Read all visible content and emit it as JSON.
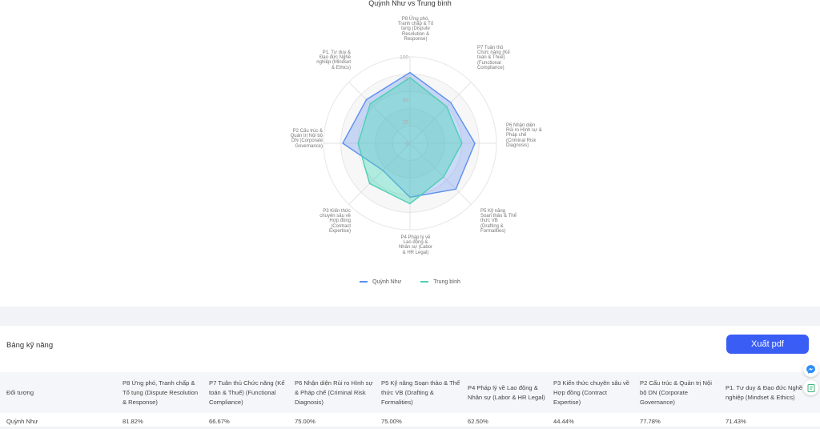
{
  "chart": {
    "title": "Quỳnh Như vs Trung bình",
    "axes": [
      "P8 Ứng phó, Tranh chấp & Tố tụng (Dispute Resolution & Response)",
      "P7 Tuân thủ Chức năng (Kế toán & Thuế) (Functional Compliance)",
      "P6 Nhận diện Rủi ro Hình sự & Pháp chế (Criminal Risk Diagnosis)",
      "P5 Kỹ năng Soạn thảo & Thể thức VB (Drafting & Formalities)",
      "P4 Pháp lý về Lao động & Nhân sự (Labor & HR Legal)",
      "P3 Kiến thức chuyên sâu về Hợp đồng (Contract Expertise)",
      "P2 Cấu trúc & Quản trị Nội bộ DN (Corporate Governance)",
      "P1. Tư duy & Đạo đức Nghề nghiệp (Mindset & Ethics)"
    ],
    "ticks": [
      "0",
      "25",
      "50",
      "75",
      "100"
    ],
    "legend": {
      "series_a": "Quỳnh Như",
      "series_b": "Trung bình"
    },
    "colors": {
      "series_a": "#5b8ff0",
      "series_b": "#4ecfb4"
    }
  },
  "chart_data": {
    "type": "radar",
    "title": "Quỳnh Như vs Trung bình",
    "categories": [
      "P8 Ứng phó, Tranh chấp & Tố tụng (Dispute Resolution & Response)",
      "P7 Tuân thủ Chức năng (Kế toán & Thuế) (Functional Compliance)",
      "P6 Nhận diện Rủi ro Hình sự & Pháp chế (Criminal Risk Diagnosis)",
      "P5 Kỹ năng Soạn thảo & Thể thức VB (Drafting & Formalities)",
      "P4 Pháp lý về Lao động & Nhân sự (Labor & HR Legal)",
      "P3 Kiến thức chuyên sâu về Hợp đồng (Contract Expertise)",
      "P2 Cấu trúc & Quản trị Nội bộ DN (Corporate Governance)",
      "P1. Tư duy & Đạo đức Nghề nghiệp (Mindset & Ethics)"
    ],
    "series": [
      {
        "name": "Quỳnh Như",
        "values": [
          81.82,
          66.67,
          75.0,
          75.0,
          62.5,
          44.44,
          77.78,
          71.43
        ]
      },
      {
        "name": "Trung bình",
        "values": [
          76,
          60,
          60,
          55,
          70,
          66,
          60,
          65
        ]
      }
    ],
    "rlim": [
      0,
      100
    ],
    "legend_position": "bottom"
  },
  "table": {
    "heading": "Bảng kỹ năng",
    "export_label": "Xuất pdf",
    "subject_header": "Đối tượng",
    "headers": [
      "P8 Ứng phó, Tranh chấp & Tố tụng (Dispute Resolution & Response)",
      "P7 Tuân thủ Chức năng (Kế toán & Thuế) (Functional Compliance)",
      "P6 Nhận diện Rủi ro Hình sự & Pháp chế (Criminal Risk Diagnosis)",
      "P5 Kỹ năng Soạn thảo & Thể thức VB (Drafting & Formalities)",
      "P4 Pháp lý về Lao động & Nhân sự (Labor & HR Legal)",
      "P3 Kiến thức chuyên sâu về Hợp đồng (Contract Expertise)",
      "P2 Cấu trúc & Quản trị Nội bộ DN (Corporate Governance)",
      "P1. Tư duy & Đạo đức Nghề nghiệp (Mindset & Ethics)"
    ],
    "rows": [
      {
        "subject": "Quỳnh Như",
        "values": [
          "81.82%",
          "66.67%",
          "75.00%",
          "75.00%",
          "62.50%",
          "44.44%",
          "77.78%",
          "71.43%"
        ]
      }
    ]
  },
  "float": {
    "messenger_icon": "messenger-icon",
    "form_icon": "form-icon"
  }
}
